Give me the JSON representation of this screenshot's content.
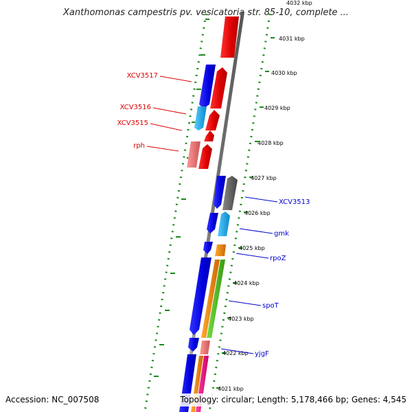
{
  "title": "Xanthomonas campestris pv. vesicatoria str. 85-10, complete ...",
  "footer": {
    "accession": "Accession: NC_007508",
    "summary": "Topology: circular; Length: 5,178,466 bp; Genes: 4,545"
  },
  "ticks": [
    "4032 kbp",
    "4031 kbp",
    "4030 kbp",
    "4029 kbp",
    "4028 kbp",
    "4027 kbp",
    "4026 kbp",
    "4025 kbp",
    "4024 kbp",
    "4023 kbp",
    "4022 kbp",
    "4021 kbp"
  ],
  "labels_left": [
    "XCV3517",
    "XCV3516",
    "XCV3515",
    "rph"
  ],
  "labels_right": [
    "XCV3513",
    "gmk",
    "rpoZ",
    "spoT",
    "yjgF"
  ],
  "colors": {
    "backbone": "#888888",
    "dots": "#1a8a1a",
    "forward_red": "#ee1111",
    "blue": "#1111ee",
    "cyan": "#22aaee",
    "salmon": "#ee7777",
    "gray": "#666666",
    "orange": "#ee8800",
    "green": "#55bb22",
    "magenta": "#ee1188",
    "label_left": "#dd0000",
    "label_right": "#0000cc"
  }
}
